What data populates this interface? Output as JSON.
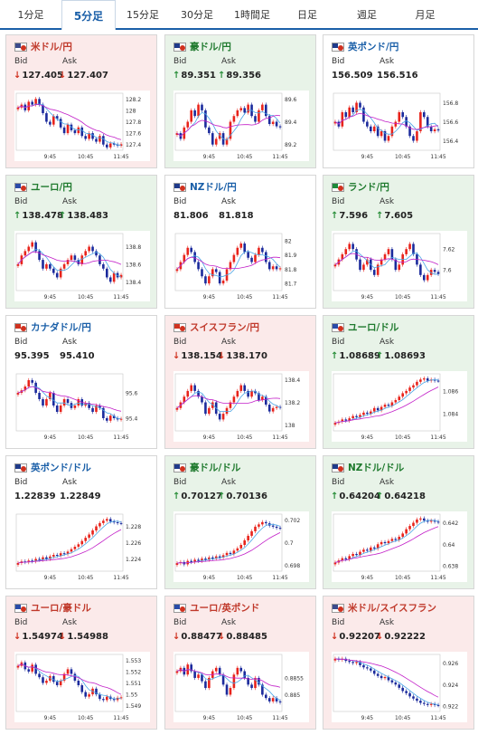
{
  "tabs": [
    {
      "label": "1分足",
      "active": false
    },
    {
      "label": "5分足",
      "active": true
    },
    {
      "label": "15分足",
      "active": false
    },
    {
      "label": "30分足",
      "active": false
    },
    {
      "label": "1時間足",
      "active": false
    },
    {
      "label": "日足",
      "active": false
    },
    {
      "label": "週足",
      "active": false
    },
    {
      "label": "月足",
      "active": false
    }
  ],
  "labels": {
    "bid": "Bid",
    "ask": "Ask"
  },
  "colors": {
    "up_candle": "#e8231b",
    "down_candle": "#1b2a9c",
    "ma_fast": "#49a6e6",
    "ma_slow": "#c21fc8",
    "up_text": "#2a8f3a",
    "down_text": "#d0311f",
    "link": "#1a5fa8"
  },
  "cards": [
    {
      "pair": "米ドル/円",
      "trend": "down",
      "bid": "127.405",
      "ask": "127.407",
      "bid_arrow": "↓",
      "ask_arrow": "↓",
      "flag": "US",
      "chart_data": {
        "type": "candlestick",
        "yticks": [
          "128.2",
          "128",
          "127.8",
          "127.6",
          "127.4"
        ],
        "xticks": [
          "9:45",
          "10:45",
          "11:45"
        ],
        "ylim": [
          127.3,
          128.3
        ],
        "close": [
          128.05,
          128.1,
          128.0,
          128.15,
          128.1,
          128.2,
          128.1,
          127.95,
          127.8,
          127.75,
          127.9,
          127.85,
          127.7,
          127.6,
          127.75,
          127.65,
          127.6,
          127.7,
          127.55,
          127.5,
          127.6,
          127.5,
          127.45,
          127.55,
          127.4,
          127.35,
          127.42,
          127.4,
          127.38,
          127.405
        ]
      }
    },
    {
      "pair": "豪ドル/円",
      "trend": "up",
      "bid": "89.351",
      "ask": "89.356",
      "bid_arrow": "↑",
      "ask_arrow": "↑",
      "flag": "AU",
      "chart_data": {
        "type": "candlestick",
        "yticks": [
          "89.6",
          "89.4",
          "89.2"
        ],
        "xticks": [
          "9:45",
          "10:45",
          "11:45"
        ],
        "ylim": [
          89.15,
          89.65
        ],
        "close": [
          89.3,
          89.25,
          89.35,
          89.4,
          89.5,
          89.45,
          89.55,
          89.5,
          89.35,
          89.3,
          89.2,
          89.25,
          89.3,
          89.2,
          89.25,
          89.4,
          89.45,
          89.5,
          89.52,
          89.48,
          89.55,
          89.45,
          89.4,
          89.5,
          89.55,
          89.45,
          89.38,
          89.4,
          89.36,
          89.351
        ]
      }
    },
    {
      "pair": "英ポンド/円",
      "trend": "flat",
      "bid": "156.509",
      "ask": "156.516",
      "bid_arrow": "",
      "ask_arrow": "",
      "flag": "GB",
      "chart_data": {
        "type": "candlestick",
        "yticks": [
          "156.8",
          "156.6",
          "156.4"
        ],
        "xticks": [
          "9:45",
          "10:45",
          "11:45"
        ],
        "ylim": [
          156.3,
          156.9
        ],
        "close": [
          156.6,
          156.55,
          156.7,
          156.65,
          156.75,
          156.7,
          156.8,
          156.75,
          156.6,
          156.55,
          156.5,
          156.55,
          156.45,
          156.5,
          156.4,
          156.45,
          156.55,
          156.6,
          156.7,
          156.65,
          156.55,
          156.45,
          156.4,
          156.5,
          156.7,
          156.65,
          156.55,
          156.5,
          156.52,
          156.509
        ]
      }
    },
    {
      "pair": "ユーロ/円",
      "trend": "up",
      "bid": "138.478",
      "ask": "138.483",
      "bid_arrow": "↑",
      "ask_arrow": "↑",
      "flag": "EU",
      "chart_data": {
        "type": "candlestick",
        "yticks": [
          "138.8",
          "138.6",
          "138.4"
        ],
        "xticks": [
          "9:45",
          "10:45",
          "11:45"
        ],
        "ylim": [
          138.3,
          138.95
        ],
        "close": [
          138.6,
          138.7,
          138.75,
          138.8,
          138.85,
          138.75,
          138.65,
          138.55,
          138.6,
          138.55,
          138.5,
          138.45,
          138.55,
          138.6,
          138.65,
          138.7,
          138.65,
          138.6,
          138.7,
          138.75,
          138.8,
          138.75,
          138.7,
          138.6,
          138.55,
          138.45,
          138.4,
          138.5,
          138.45,
          138.478
        ]
      }
    },
    {
      "pair": "NZドル/円",
      "trend": "flat",
      "bid": "81.806",
      "ask": "81.818",
      "bid_arrow": "",
      "ask_arrow": "",
      "flag": "NZ",
      "chart_data": {
        "type": "candlestick",
        "yticks": [
          "82",
          "81.9",
          "81.8",
          "81.7"
        ],
        "xticks": [
          "9:45",
          "10:45",
          "11:45"
        ],
        "ylim": [
          81.65,
          82.05
        ],
        "close": [
          81.8,
          81.85,
          81.9,
          81.95,
          81.92,
          81.85,
          81.8,
          81.75,
          81.7,
          81.75,
          81.8,
          81.78,
          81.7,
          81.72,
          81.8,
          81.85,
          81.9,
          81.95,
          81.98,
          81.92,
          81.88,
          81.85,
          81.9,
          81.95,
          81.92,
          81.85,
          81.8,
          81.82,
          81.8,
          81.806
        ]
      }
    },
    {
      "pair": "ランド/円",
      "trend": "up",
      "bid": "7.596",
      "ask": "7.605",
      "bid_arrow": "↑",
      "ask_arrow": "↑",
      "flag": "ZA",
      "chart_data": {
        "type": "candlestick",
        "yticks": [
          "7.62",
          "7.6"
        ],
        "xticks": [
          "9:45",
          "10:45",
          "11:45"
        ],
        "ylim": [
          7.58,
          7.635
        ],
        "close": [
          7.605,
          7.61,
          7.615,
          7.62,
          7.625,
          7.62,
          7.61,
          7.6,
          7.605,
          7.61,
          7.6,
          7.595,
          7.605,
          7.61,
          7.615,
          7.62,
          7.61,
          7.6,
          7.605,
          7.615,
          7.62,
          7.625,
          7.615,
          7.605,
          7.595,
          7.59,
          7.595,
          7.6,
          7.598,
          7.596
        ]
      }
    },
    {
      "pair": "カナダドル/円",
      "trend": "flat",
      "bid": "95.395",
      "ask": "95.410",
      "bid_arrow": "",
      "ask_arrow": "",
      "flag": "CA",
      "chart_data": {
        "type": "candlestick",
        "yticks": [
          "95.6",
          "95.4"
        ],
        "xticks": [
          "9:45",
          "10:45",
          "11:45"
        ],
        "ylim": [
          95.3,
          95.75
        ],
        "close": [
          95.6,
          95.62,
          95.65,
          95.7,
          95.68,
          95.6,
          95.55,
          95.5,
          95.55,
          95.6,
          95.5,
          95.45,
          95.5,
          95.55,
          95.52,
          95.48,
          95.5,
          95.55,
          95.5,
          95.52,
          95.48,
          95.45,
          95.5,
          95.48,
          95.4,
          95.38,
          95.42,
          95.4,
          95.39,
          95.395
        ]
      }
    },
    {
      "pair": "スイスフラン/円",
      "trend": "down",
      "bid": "138.154",
      "ask": "138.170",
      "bid_arrow": "↓",
      "ask_arrow": "↓",
      "flag": "CH",
      "chart_data": {
        "type": "candlestick",
        "yticks": [
          "138.4",
          "138.2",
          "138"
        ],
        "xticks": [
          "9:45",
          "10:45",
          "11:45"
        ],
        "ylim": [
          137.95,
          138.45
        ],
        "close": [
          138.15,
          138.2,
          138.25,
          138.3,
          138.35,
          138.3,
          138.25,
          138.2,
          138.1,
          138.15,
          138.2,
          138.1,
          138.05,
          138.1,
          138.15,
          138.2,
          138.25,
          138.3,
          138.35,
          138.3,
          138.25,
          138.3,
          138.28,
          138.22,
          138.25,
          138.18,
          138.12,
          138.15,
          138.16,
          138.154
        ]
      }
    },
    {
      "pair": "ユーロ/ドル",
      "trend": "up",
      "bid": "1.08689",
      "ask": "1.08693",
      "bid_arrow": "↑",
      "ask_arrow": "↑",
      "flag": "EU",
      "chart_data": {
        "type": "candlestick",
        "yticks": [
          "1.086",
          "1.084"
        ],
        "xticks": [
          "9:45",
          "10:45",
          "11:45"
        ],
        "ylim": [
          1.0825,
          1.0875
        ],
        "close": [
          1.0832,
          1.0833,
          1.0835,
          1.0834,
          1.0836,
          1.0838,
          1.0837,
          1.0839,
          1.0841,
          1.084,
          1.0842,
          1.0845,
          1.0843,
          1.0846,
          1.0848,
          1.0847,
          1.085,
          1.0852,
          1.0855,
          1.0858,
          1.086,
          1.0863,
          1.0865,
          1.0868,
          1.087,
          1.0871,
          1.0869,
          1.087,
          1.0869,
          1.08689
        ]
      }
    },
    {
      "pair": "英ポンド/ドル",
      "trend": "flat",
      "bid": "1.22839",
      "ask": "1.22849",
      "bid_arrow": "",
      "ask_arrow": "",
      "flag": "GB",
      "chart_data": {
        "type": "candlestick",
        "yticks": [
          "1.228",
          "1.226",
          "1.224"
        ],
        "xticks": [
          "9:45",
          "10:45",
          "11:45"
        ],
        "ylim": [
          1.2225,
          1.2295
        ],
        "close": [
          1.2235,
          1.2237,
          1.2236,
          1.2238,
          1.2237,
          1.224,
          1.2239,
          1.2242,
          1.224,
          1.2243,
          1.2245,
          1.2244,
          1.2247,
          1.2246,
          1.2249,
          1.2252,
          1.2255,
          1.2258,
          1.2262,
          1.2266,
          1.227,
          1.2275,
          1.228,
          1.2284,
          1.2287,
          1.2289,
          1.2286,
          1.2285,
          1.2284,
          1.22839
        ]
      }
    },
    {
      "pair": "豪ドル/ドル",
      "trend": "up",
      "bid": "0.70127",
      "ask": "0.70136",
      "bid_arrow": "↑",
      "ask_arrow": "↑",
      "flag": "AU",
      "chart_data": {
        "type": "candlestick",
        "yticks": [
          "0.702",
          "0.7",
          "0.698"
        ],
        "xticks": [
          "9:45",
          "10:45",
          "11:45"
        ],
        "ylim": [
          0.6975,
          0.7025
        ],
        "close": [
          0.6982,
          0.6983,
          0.6981,
          0.6984,
          0.6983,
          0.6985,
          0.6984,
          0.6986,
          0.6985,
          0.6987,
          0.6986,
          0.6988,
          0.6987,
          0.6989,
          0.6991,
          0.699,
          0.6993,
          0.6995,
          0.6998,
          0.7002,
          0.7006,
          0.701,
          0.7014,
          0.7016,
          0.7018,
          0.7017,
          0.7015,
          0.7014,
          0.7013,
          0.70127
        ]
      }
    },
    {
      "pair": "NZドル/ドル",
      "trend": "up",
      "bid": "0.64204",
      "ask": "0.64218",
      "bid_arrow": "↑",
      "ask_arrow": "↑",
      "flag": "NZ",
      "chart_data": {
        "type": "candlestick",
        "yticks": [
          "0.642",
          "0.64",
          "0.638"
        ],
        "xticks": [
          "9:45",
          "10:45",
          "11:45"
        ],
        "ylim": [
          0.6375,
          0.6428
        ],
        "close": [
          0.6383,
          0.6385,
          0.6387,
          0.6386,
          0.6389,
          0.6391,
          0.639,
          0.6393,
          0.6395,
          0.6394,
          0.6397,
          0.6396,
          0.64,
          0.6402,
          0.6401,
          0.6403,
          0.6405,
          0.6404,
          0.6407,
          0.641,
          0.6414,
          0.6417,
          0.642,
          0.6423,
          0.6424,
          0.6422,
          0.6421,
          0.6422,
          0.6421,
          0.64204
        ]
      }
    },
    {
      "pair": "ユーロ/豪ドル",
      "trend": "down",
      "bid": "1.54974",
      "ask": "1.54988",
      "bid_arrow": "↓",
      "ask_arrow": "↓",
      "flag": "EU",
      "chart_data": {
        "type": "candlestick",
        "yticks": [
          "1.553",
          "1.552",
          "1.551",
          "1.55",
          "1.549"
        ],
        "xticks": [
          "9:45",
          "10:45",
          "11:45"
        ],
        "ylim": [
          1.5485,
          1.5535
        ],
        "close": [
          1.5525,
          1.5528,
          1.5522,
          1.552,
          1.5526,
          1.5518,
          1.5515,
          1.551,
          1.5512,
          1.5516,
          1.5511,
          1.5508,
          1.5512,
          1.5518,
          1.5522,
          1.5518,
          1.5512,
          1.5508,
          1.5502,
          1.5498,
          1.55,
          1.5505,
          1.55,
          1.5496,
          1.5495,
          1.5498,
          1.5496,
          1.5495,
          1.5497,
          1.54974
        ]
      }
    },
    {
      "pair": "ユーロ/英ポンド",
      "trend": "down",
      "bid": "0.88477",
      "ask": "0.88485",
      "bid_arrow": "↓",
      "ask_arrow": "↓",
      "flag": "EU",
      "chart_data": {
        "type": "candlestick",
        "yticks": [
          "0.8855",
          "0.885"
        ],
        "xticks": [
          "9:45",
          "10:45",
          "11:45"
        ],
        "ylim": [
          0.8845,
          0.8862
        ],
        "close": [
          0.8857,
          0.8858,
          0.8856,
          0.8859,
          0.8857,
          0.8855,
          0.8856,
          0.8854,
          0.8852,
          0.8855,
          0.8857,
          0.8858,
          0.8856,
          0.8853,
          0.885,
          0.8852,
          0.8856,
          0.8858,
          0.8857,
          0.8855,
          0.8853,
          0.8852,
          0.8855,
          0.8853,
          0.885,
          0.8849,
          0.8848,
          0.8849,
          0.8848,
          0.88477
        ]
      }
    },
    {
      "pair": "米ドル/スイスフラン",
      "trend": "down",
      "bid": "0.92207",
      "ask": "0.92222",
      "bid_arrow": "↓",
      "ask_arrow": "↓",
      "flag": "US",
      "chart_data": {
        "type": "candlestick",
        "yticks": [
          "0.926",
          "0.924",
          "0.922"
        ],
        "xticks": [
          "9:45",
          "10:45",
          "11:45"
        ],
        "ylim": [
          0.9215,
          0.9268
        ],
        "close": [
          0.9264,
          0.9263,
          0.9264,
          0.9262,
          0.9261,
          0.926,
          0.9261,
          0.9258,
          0.9256,
          0.9255,
          0.9253,
          0.925,
          0.9248,
          0.9246,
          0.9247,
          0.9244,
          0.9242,
          0.924,
          0.9237,
          0.9234,
          0.9232,
          0.9229,
          0.9227,
          0.9225,
          0.9223,
          0.9222,
          0.9221,
          0.9222,
          0.9221,
          0.92207
        ]
      }
    }
  ]
}
